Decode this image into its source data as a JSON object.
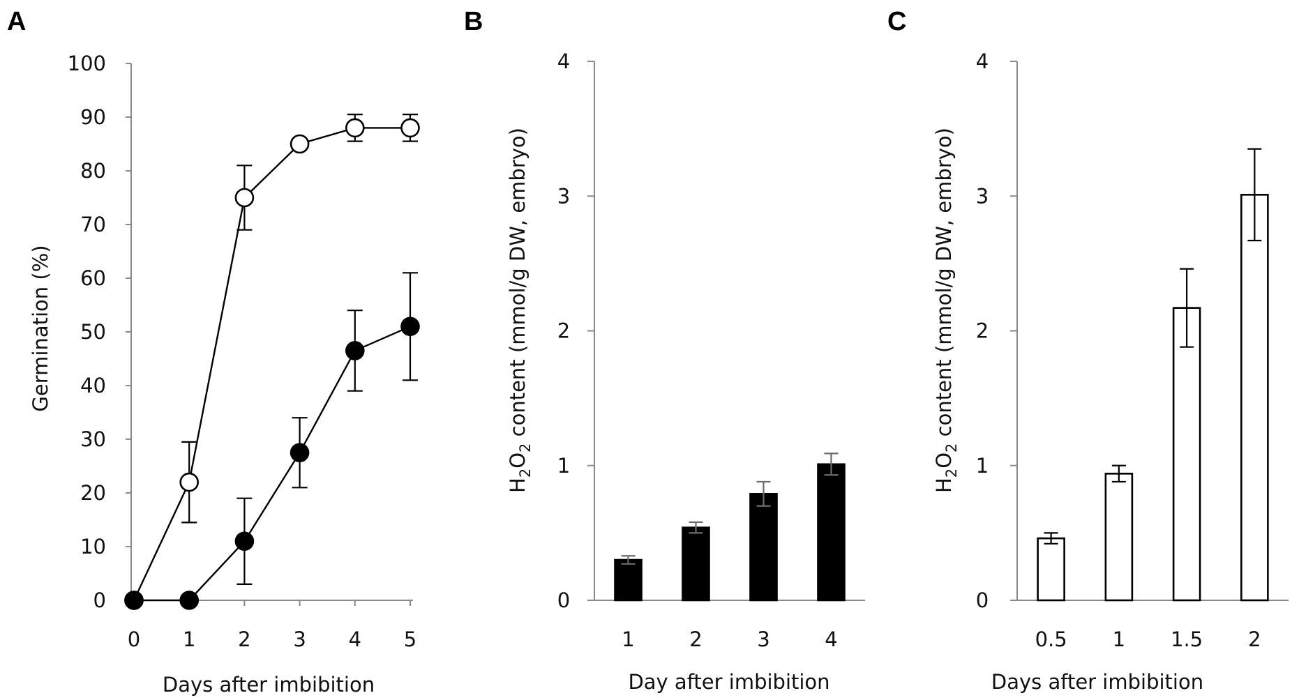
{
  "chart_data": [
    {
      "panel": "A",
      "type": "line",
      "xlabel": "Days after imbibition",
      "ylabel": "Germination (%)",
      "xlim": [
        0,
        5
      ],
      "ylim": [
        0,
        100
      ],
      "x_ticks": [
        0,
        1,
        2,
        3,
        4,
        5
      ],
      "y_ticks": [
        0,
        10,
        20,
        30,
        40,
        50,
        60,
        70,
        80,
        90,
        100
      ],
      "series": [
        {
          "name": "open circles",
          "marker": "open-circle",
          "x": [
            0,
            1,
            2,
            3,
            4,
            5
          ],
          "values": [
            0,
            22,
            75,
            85,
            88,
            88
          ],
          "error": [
            0,
            7.5,
            6,
            0,
            2.5,
            2.5
          ]
        },
        {
          "name": "filled circles",
          "marker": "filled-circle",
          "x": [
            0,
            1,
            2,
            3,
            4,
            5
          ],
          "values": [
            0,
            0,
            11,
            27.5,
            46.5,
            51
          ],
          "error": [
            0,
            0,
            8,
            6.5,
            7.5,
            10
          ]
        }
      ]
    },
    {
      "panel": "B",
      "type": "bar",
      "xlabel": "Day after imbibition",
      "ylabel_main": "H",
      "ylabel_sub1": "2",
      "ylabel_mid": "O",
      "ylabel_sub2": "2",
      "ylabel_rest": " content (mmol/g DW, embryo)",
      "categories": [
        "1",
        "2",
        "3",
        "4"
      ],
      "values": [
        0.3,
        0.54,
        0.79,
        1.01
      ],
      "error": [
        0.03,
        0.04,
        0.09,
        0.08
      ],
      "ylim": [
        0,
        4
      ],
      "y_ticks": [
        0,
        1,
        2,
        3,
        4
      ],
      "fill": "#000000"
    },
    {
      "panel": "C",
      "type": "bar",
      "xlabel": "Days after imbibition",
      "ylabel_main": "H",
      "ylabel_sub1": "2",
      "ylabel_mid": "O",
      "ylabel_sub2": "2",
      "ylabel_rest": " content (mmol/g DW, embryo)",
      "categories": [
        "0.5",
        "1",
        "1.5",
        "2"
      ],
      "values": [
        0.46,
        0.94,
        2.17,
        3.01
      ],
      "error": [
        0.04,
        0.06,
        0.29,
        0.34
      ],
      "ylim": [
        0,
        4
      ],
      "y_ticks": [
        0,
        1,
        2,
        3,
        4
      ],
      "fill": "#ffffff"
    }
  ]
}
